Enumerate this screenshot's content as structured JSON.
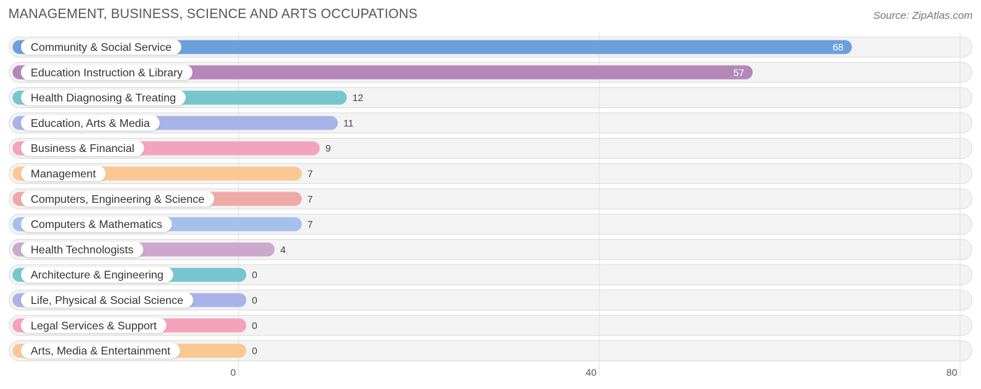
{
  "title": "MANAGEMENT, BUSINESS, SCIENCE AND ARTS OCCUPATIONS",
  "source": "Source: ZipAtlas.com",
  "chart_data": {
    "type": "bar",
    "orientation": "horizontal",
    "categories": [
      "Community & Social Service",
      "Education Instruction & Library",
      "Health Diagnosing & Treating",
      "Education, Arts & Media",
      "Business & Financial",
      "Management",
      "Computers, Engineering & Science",
      "Computers & Mathematics",
      "Health Technologists",
      "Architecture & Engineering",
      "Life, Physical & Social Science",
      "Legal Services & Support",
      "Arts, Media & Entertainment"
    ],
    "values": [
      68,
      57,
      12,
      11,
      9,
      7,
      7,
      7,
      4,
      0,
      0,
      0,
      0
    ],
    "colors": [
      "#6ca0dc",
      "#b487b8",
      "#77c6cf",
      "#aab3e8",
      "#f5a3bd",
      "#fbc894",
      "#eeaaa7",
      "#a3c1ea",
      "#cba9cc",
      "#77c6cf",
      "#aab3e8",
      "#f5a3bd",
      "#fbc894"
    ],
    "xlim": [
      0,
      80
    ],
    "xticks": [
      0,
      40,
      80
    ],
    "grid": true,
    "xlabel": "",
    "ylabel": ""
  }
}
